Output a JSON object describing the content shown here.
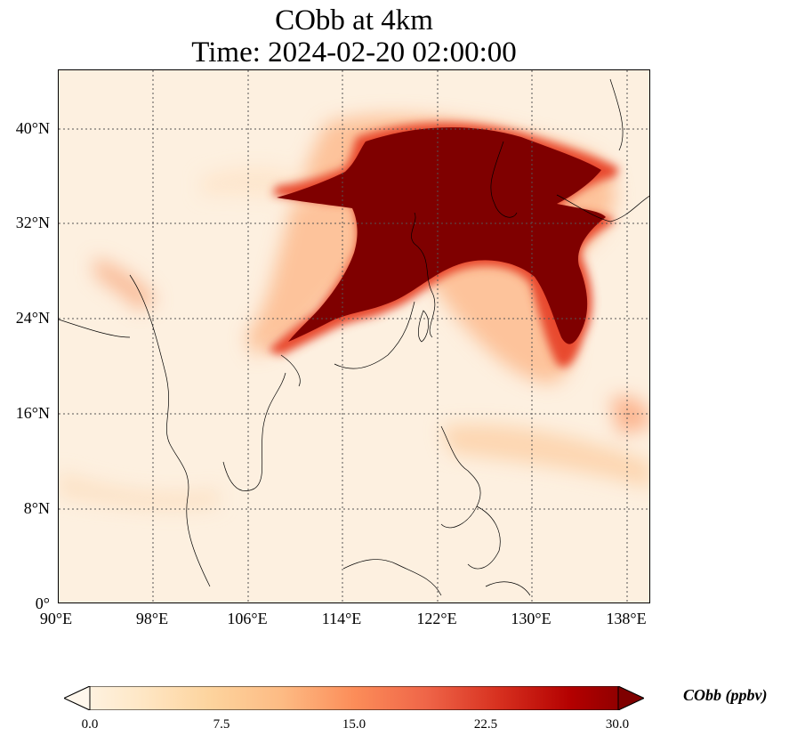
{
  "title_line1": "CObb at 4km",
  "title_line2": "Time: 2024-02-20 02:00:00",
  "map": {
    "variable": "CObb",
    "level": "4km",
    "lon_range": [
      90,
      140
    ],
    "lat_range": [
      0,
      44
    ],
    "gridlines": true,
    "coastlines": true,
    "borders": true,
    "colormap": "OrRd"
  },
  "lat_ticks": [
    "0°",
    "8°N",
    "16°N",
    "24°N",
    "32°N",
    "40°N"
  ],
  "lon_ticks": [
    "90°E",
    "98°E",
    "106°E",
    "114°E",
    "122°E",
    "130°E",
    "138°E"
  ],
  "colorbar": {
    "label": "CObb (ppbv)",
    "ticks": [
      "0.0",
      "7.5",
      "15.0",
      "22.5",
      "30.0"
    ],
    "range": [
      0,
      30
    ],
    "extend": "both",
    "colors": [
      "#fff7ec",
      "#fee8c8",
      "#fdd49e",
      "#fdbb84",
      "#fc8d59",
      "#ef6548",
      "#d7301f",
      "#b30000",
      "#7f0000"
    ]
  }
}
